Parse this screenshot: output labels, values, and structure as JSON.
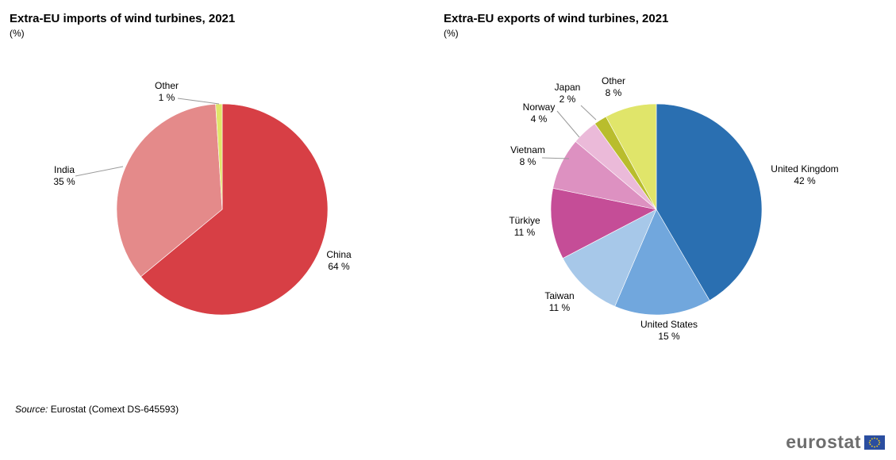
{
  "chart_data": [
    {
      "type": "pie",
      "title": "Extra-EU imports of wind turbines, 2021",
      "subtitle": "(%)",
      "slices": [
        {
          "label": "China",
          "value": 64,
          "value_label": "64 %",
          "color": "#d73f45"
        },
        {
          "label": "India",
          "value": 35,
          "value_label": "35 %",
          "color": "#e48a8a"
        },
        {
          "label": "Other",
          "value": 1,
          "value_label": "1 %",
          "color": "#e0e56a"
        }
      ]
    },
    {
      "type": "pie",
      "title": "Extra-EU exports of wind turbines, 2021",
      "subtitle": "(%)",
      "slices": [
        {
          "label": "United Kingdom",
          "value": 42,
          "value_label": "42 %",
          "color": "#2a6fb1"
        },
        {
          "label": "United States",
          "value": 15,
          "value_label": "15 %",
          "color": "#71a7dd"
        },
        {
          "label": "Taiwan",
          "value": 11,
          "value_label": "11 %",
          "color": "#a7c8e9"
        },
        {
          "label": "Türkiye",
          "value": 11,
          "value_label": "11 %",
          "color": "#c54d97"
        },
        {
          "label": "Vietnam",
          "value": 8,
          "value_label": "8 %",
          "color": "#dd91c1"
        },
        {
          "label": "Norway",
          "value": 4,
          "value_label": "4 %",
          "color": "#ebbad9"
        },
        {
          "label": "Japan",
          "value": 2,
          "value_label": "2 %",
          "color": "#b9bd2d"
        },
        {
          "label": "Other",
          "value": 8,
          "value_label": "8 %",
          "color": "#e0e56a"
        }
      ]
    }
  ],
  "source": {
    "label": "Source:",
    "text": "Eurostat (Comext DS-645593)"
  },
  "logo": {
    "text": "eurostat"
  }
}
